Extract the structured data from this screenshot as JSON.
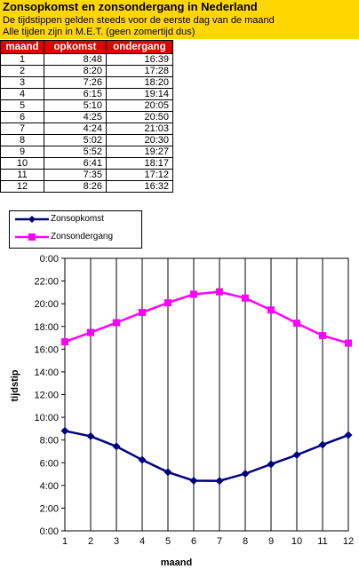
{
  "header": {
    "title": "Zonsopkomst en zonsondergang in Nederland",
    "subtitle1": "De tijdstippen gelden steeds voor de eerste dag van de maand",
    "subtitle2": "Alle tijden zijn in M.E.T. (geen zomertijd dus)",
    "bg_color": "#ffd700"
  },
  "table": {
    "headers": [
      "maand",
      "opkomst",
      "ondergang"
    ],
    "header_color": "#e00000",
    "rows": [
      [
        "1",
        "8:48",
        "16:39"
      ],
      [
        "2",
        "8:20",
        "17:28"
      ],
      [
        "3",
        "7:26",
        "18:20"
      ],
      [
        "4",
        "6:15",
        "19:14"
      ],
      [
        "5",
        "5:10",
        "20:05"
      ],
      [
        "6",
        "4:25",
        "20:50"
      ],
      [
        "7",
        "4:24",
        "21:03"
      ],
      [
        "8",
        "5:02",
        "20:30"
      ],
      [
        "9",
        "5:52",
        "19:27"
      ],
      [
        "10",
        "6:41",
        "18:17"
      ],
      [
        "11",
        "7:35",
        "17:12"
      ],
      [
        "12",
        "8:26",
        "16:32"
      ]
    ]
  },
  "chart_data": {
    "type": "line",
    "title": "",
    "xlabel": "maand",
    "ylabel": "tijdstip",
    "x": [
      1,
      2,
      3,
      4,
      5,
      6,
      7,
      8,
      9,
      10,
      11,
      12
    ],
    "xlim": [
      1,
      12
    ],
    "ylim": [
      0,
      24
    ],
    "ytick_labels": [
      "0:00",
      "2:00",
      "4:00",
      "6:00",
      "8:00",
      "10:00",
      "12:00",
      "14:00",
      "16:00",
      "18:00",
      "20:00",
      "22:00",
      "0:00"
    ],
    "grid": "vertical",
    "legend_position": "top-left",
    "series": [
      {
        "name": "Zonsopkomst",
        "color": "#000080",
        "marker": "diamond",
        "values": [
          8.8,
          8.333,
          7.433,
          6.25,
          5.167,
          4.417,
          4.4,
          5.033,
          5.867,
          6.683,
          7.583,
          8.433
        ]
      },
      {
        "name": "Zonsondergang",
        "color": "#ff00ff",
        "marker": "square",
        "values": [
          16.65,
          17.467,
          18.333,
          19.233,
          20.083,
          20.833,
          21.05,
          20.5,
          19.45,
          18.283,
          17.2,
          16.533
        ]
      }
    ]
  }
}
